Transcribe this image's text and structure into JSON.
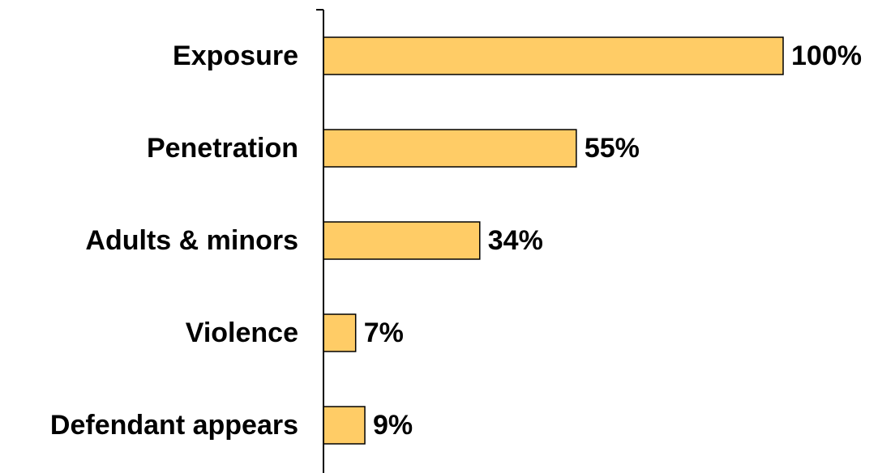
{
  "chart_data": {
    "type": "bar",
    "orientation": "horizontal",
    "categories": [
      "Exposure",
      "Penetration",
      "Adults & minors",
      "Violence",
      "Defendant appears"
    ],
    "values": [
      100,
      55,
      34,
      7,
      9
    ],
    "value_labels": [
      "100%",
      "55%",
      "34%",
      "7%",
      "9%"
    ],
    "unit": "%",
    "xlim": [
      0,
      100
    ],
    "grid": false,
    "legend": "none",
    "bar_color": "#FFCC66",
    "bar_edge_color": "#000000"
  }
}
